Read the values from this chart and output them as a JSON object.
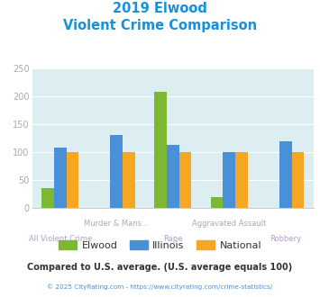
{
  "title_line1": "2019 Elwood",
  "title_line2": "Violent Crime Comparison",
  "categories": [
    "All Violent Crime",
    "Murder & Mans...",
    "Rape",
    "Aggravated Assault",
    "Robbery"
  ],
  "x_labels_top": [
    "",
    "Murder & Mans...",
    "",
    "Aggravated Assault",
    ""
  ],
  "x_labels_bot": [
    "All Violent Crime",
    "",
    "Rape",
    "",
    "Robbery"
  ],
  "elwood": [
    35,
    0,
    208,
    20,
    0
  ],
  "illinois": [
    108,
    130,
    113,
    100,
    120
  ],
  "national": [
    100,
    100,
    100,
    100,
    100
  ],
  "elwood_color": "#7db832",
  "illinois_color": "#4a90d9",
  "national_color": "#f5a623",
  "ylim": [
    0,
    250
  ],
  "yticks": [
    0,
    50,
    100,
    150,
    200,
    250
  ],
  "bg_color": "#ddeef2",
  "title_color": "#1a90d9",
  "xlabel_top_color": "#aaaaaa",
  "xlabel_bot_color": "#b59ccc",
  "ylabel_color": "#aaaaaa",
  "footer_text": "Compared to U.S. average. (U.S. average equals 100)",
  "footer_color": "#333333",
  "copyright_text": "© 2025 CityRating.com - https://www.cityrating.com/crime-statistics/",
  "copyright_color": "#4a90d9",
  "legend_labels": [
    "Elwood",
    "Illinois",
    "National"
  ],
  "legend_text_color": "#333333"
}
